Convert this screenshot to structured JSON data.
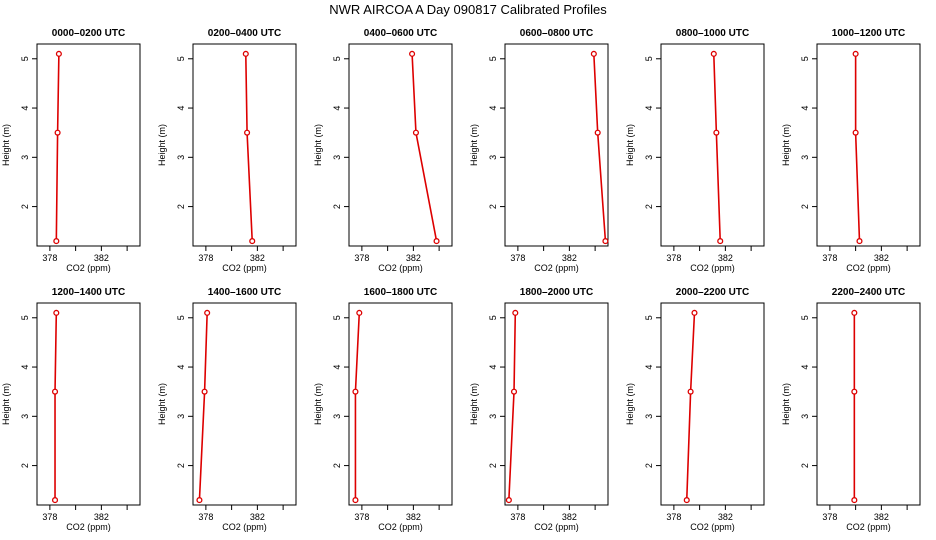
{
  "title": "NWR AIRCOA A  Day 090817  Calibrated Profiles",
  "chart_data": [
    {
      "type": "line",
      "title": "0000–0200 UTC",
      "xlabel": "CO2 (ppm)",
      "ylabel": "Height (m)",
      "xlim": [
        377,
        385
      ],
      "ylim": [
        1.2,
        5.3
      ],
      "x_ticks": [
        378,
        382
      ],
      "y_ticks": [
        2,
        3,
        4,
        5
      ],
      "series": [
        {
          "x": [
            378.5,
            378.6,
            378.7
          ],
          "y": [
            1.3,
            3.5,
            5.1
          ]
        }
      ]
    },
    {
      "type": "line",
      "title": "0200–0400 UTC",
      "xlabel": "CO2 (ppm)",
      "ylabel": "Height (m)",
      "xlim": [
        377,
        385
      ],
      "ylim": [
        1.2,
        5.3
      ],
      "x_ticks": [
        378,
        382
      ],
      "y_ticks": [
        2,
        3,
        4,
        5
      ],
      "series": [
        {
          "x": [
            381.6,
            381.2,
            381.1
          ],
          "y": [
            1.3,
            3.5,
            5.1
          ]
        }
      ]
    },
    {
      "type": "line",
      "title": "0400–0600 UTC",
      "xlabel": "CO2 (ppm)",
      "ylabel": "Height (m)",
      "xlim": [
        377,
        385
      ],
      "ylim": [
        1.2,
        5.3
      ],
      "x_ticks": [
        378,
        382
      ],
      "y_ticks": [
        2,
        3,
        4,
        5
      ],
      "series": [
        {
          "x": [
            383.8,
            382.2,
            381.9
          ],
          "y": [
            1.3,
            3.5,
            5.1
          ]
        }
      ]
    },
    {
      "type": "line",
      "title": "0600–0800 UTC",
      "xlabel": "CO2 (ppm)",
      "ylabel": "Height (m)",
      "xlim": [
        377,
        385
      ],
      "ylim": [
        1.2,
        5.3
      ],
      "x_ticks": [
        378,
        382
      ],
      "y_ticks": [
        2,
        3,
        4,
        5
      ],
      "series": [
        {
          "x": [
            384.8,
            384.2,
            383.9
          ],
          "y": [
            1.3,
            3.5,
            5.1
          ]
        }
      ]
    },
    {
      "type": "line",
      "title": "0800–1000 UTC",
      "xlabel": "CO2 (ppm)",
      "ylabel": "Height (m)",
      "xlim": [
        377,
        385
      ],
      "ylim": [
        1.2,
        5.3
      ],
      "x_ticks": [
        378,
        382
      ],
      "y_ticks": [
        2,
        3,
        4,
        5
      ],
      "series": [
        {
          "x": [
            381.6,
            381.3,
            381.1
          ],
          "y": [
            1.3,
            3.5,
            5.1
          ]
        }
      ]
    },
    {
      "type": "line",
      "title": "1000–1200 UTC",
      "xlabel": "CO2 (ppm)",
      "ylabel": "Height (m)",
      "xlim": [
        377,
        385
      ],
      "ylim": [
        1.2,
        5.3
      ],
      "x_ticks": [
        378,
        382
      ],
      "y_ticks": [
        2,
        3,
        4,
        5
      ],
      "series": [
        {
          "x": [
            380.3,
            380.0,
            380.0
          ],
          "y": [
            1.3,
            3.5,
            5.1
          ]
        }
      ]
    },
    {
      "type": "line",
      "title": "1200–1400 UTC",
      "xlabel": "CO2 (ppm)",
      "ylabel": "Height (m)",
      "xlim": [
        377,
        385
      ],
      "ylim": [
        1.2,
        5.3
      ],
      "x_ticks": [
        378,
        382
      ],
      "y_ticks": [
        2,
        3,
        4,
        5
      ],
      "series": [
        {
          "x": [
            378.4,
            378.4,
            378.5
          ],
          "y": [
            1.3,
            3.5,
            5.1
          ]
        }
      ]
    },
    {
      "type": "line",
      "title": "1400–1600 UTC",
      "xlabel": "CO2 (ppm)",
      "ylabel": "Height (m)",
      "xlim": [
        377,
        385
      ],
      "ylim": [
        1.2,
        5.3
      ],
      "x_ticks": [
        378,
        382
      ],
      "y_ticks": [
        2,
        3,
        4,
        5
      ],
      "series": [
        {
          "x": [
            377.5,
            377.9,
            378.1
          ],
          "y": [
            1.3,
            3.5,
            5.1
          ]
        }
      ]
    },
    {
      "type": "line",
      "title": "1600–1800 UTC",
      "xlabel": "CO2 (ppm)",
      "ylabel": "Height (m)",
      "xlim": [
        377,
        385
      ],
      "ylim": [
        1.2,
        5.3
      ],
      "x_ticks": [
        378,
        382
      ],
      "y_ticks": [
        2,
        3,
        4,
        5
      ],
      "series": [
        {
          "x": [
            377.5,
            377.5,
            377.8
          ],
          "y": [
            1.3,
            3.5,
            5.1
          ]
        }
      ]
    },
    {
      "type": "line",
      "title": "1800–2000 UTC",
      "xlabel": "CO2 (ppm)",
      "ylabel": "Height (m)",
      "xlim": [
        377,
        385
      ],
      "ylim": [
        1.2,
        5.3
      ],
      "x_ticks": [
        378,
        382
      ],
      "y_ticks": [
        2,
        3,
        4,
        5
      ],
      "series": [
        {
          "x": [
            377.3,
            377.7,
            377.8
          ],
          "y": [
            1.3,
            3.5,
            5.1
          ]
        }
      ]
    },
    {
      "type": "line",
      "title": "2000–2200 UTC",
      "xlabel": "CO2 (ppm)",
      "ylabel": "Height (m)",
      "xlim": [
        377,
        385
      ],
      "ylim": [
        1.2,
        5.3
      ],
      "x_ticks": [
        378,
        382
      ],
      "y_ticks": [
        2,
        3,
        4,
        5
      ],
      "series": [
        {
          "x": [
            379.0,
            379.3,
            379.6
          ],
          "y": [
            1.3,
            3.5,
            5.1
          ]
        }
      ]
    },
    {
      "type": "line",
      "title": "2200–2400 UTC",
      "xlabel": "CO2 (ppm)",
      "ylabel": "Height (m)",
      "xlim": [
        377,
        385
      ],
      "ylim": [
        1.2,
        5.3
      ],
      "x_ticks": [
        378,
        382
      ],
      "y_ticks": [
        2,
        3,
        4,
        5
      ],
      "series": [
        {
          "x": [
            379.9,
            379.9,
            379.9
          ],
          "y": [
            1.3,
            3.5,
            5.1
          ]
        }
      ]
    }
  ]
}
